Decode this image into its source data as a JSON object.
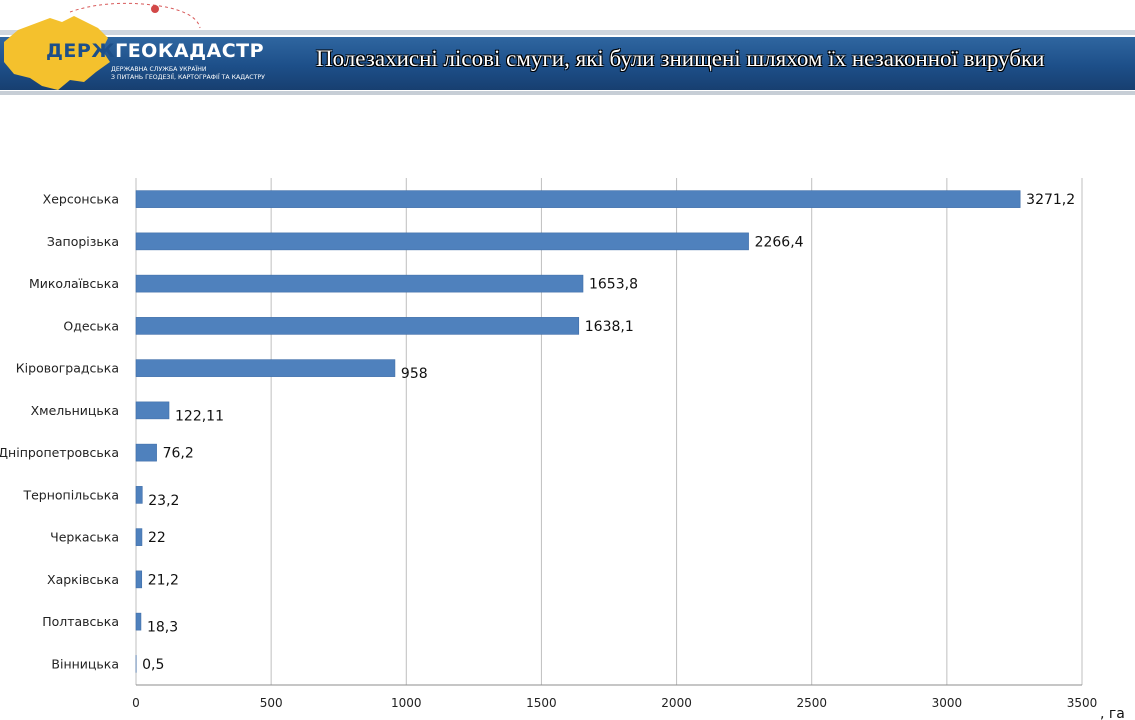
{
  "header": {
    "logo_prefix": "ДЕРЖ",
    "logo_main": "ГЕОКАДАСТР",
    "logo_sub_line1": "ДЕРЖАВНА СЛУЖБА УКРАЇНИ",
    "logo_sub_line2": "З ПИТАНЬ ГЕОДЕЗІЇ, КАРТОГРАФІЇ ТА КАДАСТРУ",
    "title": "Полезахисні лісові смуги,  які були знищені шляхом їх незаконної вирубки"
  },
  "colors": {
    "bar": "#4f81bd",
    "header_blue": "#1d4f89",
    "map_yellow": "#f4c12d",
    "grid": "#bfbfbf"
  },
  "chart_data": {
    "type": "bar",
    "orientation": "horizontal",
    "title": "",
    "xlabel": ", га",
    "ylabel": "",
    "xlim": [
      0,
      3500
    ],
    "xticks": [
      0,
      500,
      1000,
      1500,
      2000,
      2500,
      3000,
      3500
    ],
    "grid": true,
    "categories": [
      "Херсонська",
      "Запорізька",
      "Миколаївська",
      "Одеська",
      "Кіровоградська",
      "Хмельницька",
      "Дніпропетровська",
      "Тернопільська",
      "Черкаська",
      "Харківська",
      "Полтавська",
      "Вінницька"
    ],
    "values": [
      3271.2,
      2266.4,
      1653.8,
      1638.1,
      958,
      122.11,
      76.2,
      23.2,
      22,
      21.2,
      18.3,
      0.5
    ],
    "value_labels": [
      "3271,2",
      "2266,4",
      "1653,8",
      "1638,1",
      "958",
      "122,11",
      "76,2",
      "23,2",
      "22",
      "21,2",
      "18,3",
      "0,5"
    ]
  }
}
